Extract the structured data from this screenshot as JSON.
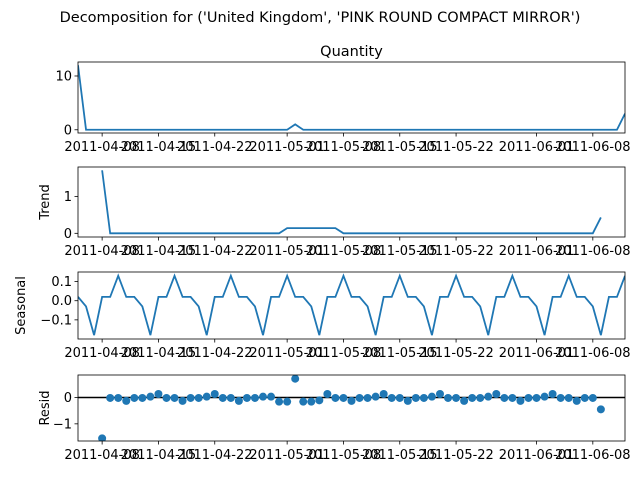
{
  "chart_data": {
    "type": "line",
    "title": "Decomposition for ('United Kingdom', 'PINK ROUND COMPACT MIRROR')",
    "x_tick_labels": [
      "2011-04-08",
      "2011-04-15",
      "2011-04-22",
      "2011-05-01",
      "2011-05-08",
      "2011-05-15",
      "2011-05-22",
      "2011-06-01",
      "2011-06-08"
    ],
    "x_tick_dates": [
      "2011-04-08",
      "2011-04-15",
      "2011-04-22",
      "2011-05-01",
      "2011-05-08",
      "2011-05-15",
      "2011-05-22",
      "2011-06-01",
      "2011-06-08"
    ],
    "panels": [
      {
        "id": "observed",
        "subplot_title": "Quantity",
        "ylabel": "",
        "kind": "line",
        "ylim": [
          -0.6,
          12.6
        ],
        "yticks": [
          0,
          10
        ],
        "ytick_labels": [
          "0",
          "10"
        ],
        "x": [
          "2011-04-05",
          "2011-04-06",
          "2011-04-07",
          "2011-04-08",
          "2011-04-09",
          "2011-04-10",
          "2011-04-11",
          "2011-04-12",
          "2011-04-13",
          "2011-04-14",
          "2011-04-15",
          "2011-04-16",
          "2011-04-17",
          "2011-04-18",
          "2011-04-19",
          "2011-04-20",
          "2011-04-21",
          "2011-04-22",
          "2011-04-23",
          "2011-04-24",
          "2011-04-25",
          "2011-04-26",
          "2011-04-27",
          "2011-04-28",
          "2011-04-29",
          "2011-04-30",
          "2011-05-01",
          "2011-05-02",
          "2011-05-03",
          "2011-05-04",
          "2011-05-05",
          "2011-05-06",
          "2011-05-07",
          "2011-05-08",
          "2011-05-09",
          "2011-05-10",
          "2011-05-11",
          "2011-05-12",
          "2011-05-13",
          "2011-05-14",
          "2011-05-15",
          "2011-05-16",
          "2011-05-17",
          "2011-05-18",
          "2011-05-19",
          "2011-05-20",
          "2011-05-21",
          "2011-05-22",
          "2011-05-23",
          "2011-05-24",
          "2011-05-25",
          "2011-05-26",
          "2011-05-27",
          "2011-05-28",
          "2011-05-29",
          "2011-05-30",
          "2011-05-31",
          "2011-06-01",
          "2011-06-02",
          "2011-06-03",
          "2011-06-04",
          "2011-06-05",
          "2011-06-06",
          "2011-06-07",
          "2011-06-08",
          "2011-06-09",
          "2011-06-10",
          "2011-06-11",
          "2011-06-12"
        ],
        "values": [
          12,
          0,
          0,
          0,
          0,
          0,
          0,
          0,
          0,
          0,
          0,
          0,
          0,
          0,
          0,
          0,
          0,
          0,
          0,
          0,
          0,
          0,
          0,
          0,
          0,
          0,
          0,
          1,
          0,
          0,
          0,
          0,
          0,
          0,
          0,
          0,
          0,
          0,
          0,
          0,
          0,
          0,
          0,
          0,
          0,
          0,
          0,
          0,
          0,
          0,
          0,
          0,
          0,
          0,
          0,
          0,
          0,
          0,
          0,
          0,
          0,
          0,
          0,
          0,
          0,
          0,
          0,
          0,
          3
        ]
      },
      {
        "id": "trend",
        "subplot_title": "",
        "ylabel": "Trend",
        "kind": "line",
        "ylim": [
          -0.1,
          1.8
        ],
        "yticks": [
          0,
          1
        ],
        "ytick_labels": [
          "0",
          "1"
        ],
        "x": [
          "2011-04-08",
          "2011-04-09",
          "2011-04-10",
          "2011-04-11",
          "2011-04-12",
          "2011-04-13",
          "2011-04-14",
          "2011-04-15",
          "2011-04-16",
          "2011-04-17",
          "2011-04-18",
          "2011-04-19",
          "2011-04-20",
          "2011-04-21",
          "2011-04-22",
          "2011-04-23",
          "2011-04-24",
          "2011-04-25",
          "2011-04-26",
          "2011-04-27",
          "2011-04-28",
          "2011-04-29",
          "2011-04-30",
          "2011-05-01",
          "2011-05-02",
          "2011-05-03",
          "2011-05-04",
          "2011-05-05",
          "2011-05-06",
          "2011-05-07",
          "2011-05-08",
          "2011-05-09",
          "2011-05-10",
          "2011-05-11",
          "2011-05-12",
          "2011-05-13",
          "2011-05-14",
          "2011-05-15",
          "2011-05-16",
          "2011-05-17",
          "2011-05-18",
          "2011-05-19",
          "2011-05-20",
          "2011-05-21",
          "2011-05-22",
          "2011-05-23",
          "2011-05-24",
          "2011-05-25",
          "2011-05-26",
          "2011-05-27",
          "2011-05-28",
          "2011-05-29",
          "2011-05-30",
          "2011-05-31",
          "2011-06-01",
          "2011-06-02",
          "2011-06-03",
          "2011-06-04",
          "2011-06-05",
          "2011-06-06",
          "2011-06-07",
          "2011-06-08",
          "2011-06-09"
        ],
        "values": [
          1.71,
          0,
          0,
          0,
          0,
          0,
          0,
          0,
          0,
          0,
          0,
          0,
          0,
          0,
          0,
          0,
          0,
          0,
          0,
          0,
          0,
          0,
          0,
          0.14,
          0.14,
          0.14,
          0.14,
          0.14,
          0.14,
          0.14,
          0,
          0,
          0,
          0,
          0,
          0,
          0,
          0,
          0,
          0,
          0,
          0,
          0,
          0,
          0,
          0,
          0,
          0,
          0,
          0,
          0,
          0,
          0,
          0,
          0,
          0,
          0,
          0,
          0,
          0,
          0,
          0,
          0.43
        ]
      },
      {
        "id": "seasonal",
        "subplot_title": "",
        "ylabel": "Seasonal",
        "kind": "line",
        "ylim": [
          -0.2,
          0.15
        ],
        "yticks": [
          0.1,
          0.0,
          -0.1
        ],
        "ytick_labels": [
          "0.1",
          "0.0",
          "−0.1"
        ],
        "pattern_start": "2011-04-05",
        "period_values": [
          0.02,
          -0.03,
          -0.18,
          0.02,
          0.02,
          0.13,
          0.02
        ],
        "x_end": "2011-06-12"
      },
      {
        "id": "resid",
        "subplot_title": "",
        "ylabel": "Resid",
        "kind": "scatter",
        "ylim": [
          -1.65,
          0.85
        ],
        "yticks": [
          0,
          -1
        ],
        "ytick_labels": [
          "0",
          "−1"
        ],
        "zero_line": true,
        "x": [
          "2011-04-08",
          "2011-04-09",
          "2011-04-10",
          "2011-04-11",
          "2011-04-12",
          "2011-04-13",
          "2011-04-14",
          "2011-04-15",
          "2011-04-16",
          "2011-04-17",
          "2011-04-18",
          "2011-04-19",
          "2011-04-20",
          "2011-04-21",
          "2011-04-22",
          "2011-04-23",
          "2011-04-24",
          "2011-04-25",
          "2011-04-26",
          "2011-04-27",
          "2011-04-28",
          "2011-04-29",
          "2011-04-30",
          "2011-05-01",
          "2011-05-02",
          "2011-05-03",
          "2011-05-04",
          "2011-05-05",
          "2011-05-06",
          "2011-05-07",
          "2011-05-08",
          "2011-05-09",
          "2011-05-10",
          "2011-05-11",
          "2011-05-12",
          "2011-05-13",
          "2011-05-14",
          "2011-05-15",
          "2011-05-16",
          "2011-05-17",
          "2011-05-18",
          "2011-05-19",
          "2011-05-20",
          "2011-05-21",
          "2011-05-22",
          "2011-05-23",
          "2011-05-24",
          "2011-05-25",
          "2011-05-26",
          "2011-05-27",
          "2011-05-28",
          "2011-05-29",
          "2011-05-30",
          "2011-05-31",
          "2011-06-01",
          "2011-06-02",
          "2011-06-03",
          "2011-06-04",
          "2011-06-05",
          "2011-06-06",
          "2011-06-07",
          "2011-06-08",
          "2011-06-09"
        ],
        "values": [
          -1.55,
          -0.02,
          -0.02,
          -0.13,
          -0.02,
          -0.02,
          0.03,
          0.13,
          -0.02,
          -0.02,
          -0.13,
          -0.02,
          -0.02,
          0.03,
          0.13,
          -0.02,
          -0.02,
          -0.13,
          -0.02,
          -0.02,
          0.03,
          0.03,
          -0.16,
          -0.16,
          0.71,
          -0.16,
          -0.16,
          -0.11,
          0.13,
          -0.02,
          -0.02,
          -0.13,
          -0.02,
          -0.02,
          0.03,
          0.13,
          -0.02,
          -0.02,
          -0.13,
          -0.02,
          -0.02,
          0.03,
          0.13,
          -0.02,
          -0.02,
          -0.13,
          -0.02,
          -0.02,
          0.03,
          0.13,
          -0.02,
          -0.02,
          -0.13,
          -0.02,
          -0.02,
          0.03,
          0.13,
          -0.02,
          -0.02,
          -0.13,
          -0.02,
          -0.02,
          -0.45
        ]
      }
    ]
  }
}
